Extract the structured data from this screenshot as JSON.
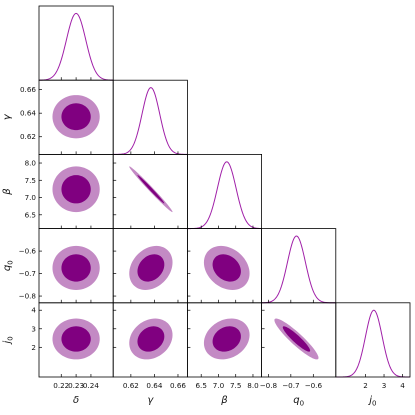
{
  "chart_data": {
    "type": "corner-plot",
    "parameters": [
      {
        "name": "δ",
        "label": "δ",
        "label_sub": "",
        "range": [
          0.205,
          0.255
        ],
        "ticks": [
          0.22,
          0.23,
          0.24
        ],
        "tick_labels": [
          "0.22",
          "0.23",
          "0.24"
        ],
        "mean": 0.23,
        "sigma": 0.0065
      },
      {
        "name": "γ",
        "label": "γ",
        "label_sub": "",
        "range": [
          0.605,
          0.668
        ],
        "ticks": [
          0.62,
          0.64,
          0.66
        ],
        "tick_labels": [
          "0.62",
          "0.64",
          "0.66"
        ],
        "mean": 0.637,
        "sigma": 0.0075
      },
      {
        "name": "β",
        "label": "β",
        "label_sub": "",
        "range": [
          6.1,
          8.25
        ],
        "ticks": [
          6.5,
          7.0,
          7.5,
          8.0
        ],
        "tick_labels": [
          "6.5",
          "7.0",
          "7.5",
          "8.0"
        ],
        "mean": 7.24,
        "sigma": 0.27
      },
      {
        "name": "q0",
        "label": "q",
        "label_sub": "0",
        "range": [
          -0.83,
          -0.5
        ],
        "ticks": [
          -0.8,
          -0.7,
          -0.6
        ],
        "tick_labels": [
          "−0.8",
          "−0.7",
          "−0.6"
        ],
        "mean": -0.675,
        "sigma": 0.04
      },
      {
        "name": "j0",
        "label": "j",
        "label_sub": "0",
        "range": [
          0.4,
          4.4
        ],
        "ticks": [
          2,
          3,
          4
        ],
        "tick_labels": [
          "2",
          "3",
          "4"
        ],
        "mean": 2.45,
        "sigma": 0.45
      }
    ],
    "y_axis_ticks": {
      "γ": {
        "ticks": [
          0.62,
          0.64,
          0.66
        ],
        "tick_labels": [
          "0.62",
          "0.64",
          "0.66"
        ]
      },
      "β": {
        "ticks": [
          6.5,
          7.0,
          7.5,
          8.0
        ],
        "tick_labels": [
          "6.5",
          "7.0",
          "7.5",
          "8.0"
        ]
      },
      "q0": {
        "ticks": [
          -0.8,
          -0.7,
          -0.6
        ],
        "tick_labels": [
          "−0.8",
          "−0.7",
          "−0.6"
        ]
      },
      "j0": {
        "ticks": [
          2,
          3,
          4
        ],
        "tick_labels": [
          "2",
          "3",
          "4"
        ]
      }
    },
    "correlations": {
      "γ|δ": 0,
      "β|δ": 0,
      "q0|δ": 0,
      "j0|δ": 0,
      "β|γ": -0.99,
      "q0|γ": 0.25,
      "j0|γ": 0.2,
      "q0|β": -0.25,
      "j0|β": 0.2,
      "j0|q0": -0.92
    },
    "contour_levels": [
      "68%",
      "95%"
    ],
    "colors": {
      "inner": "#800080",
      "outer": "#c38ac4",
      "line": "#a020a8",
      "frame": "#000000"
    },
    "grid": false
  }
}
